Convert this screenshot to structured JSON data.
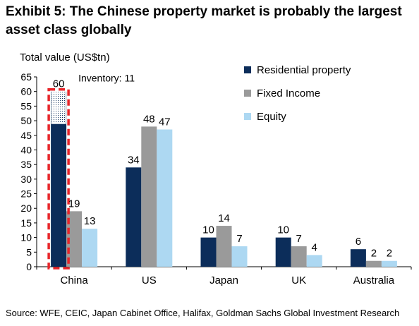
{
  "header": {
    "title": "Exhibit 5: The Chinese property market is probably the largest asset class globally"
  },
  "footer": {
    "source": "Source: WFE, CEIC, Japan Cabinet Office, Halifax, Goldman Sachs Global Investment Research"
  },
  "chart_data": {
    "type": "bar",
    "title": "Exhibit 5: The Chinese property market is probably the largest asset class globally",
    "xlabel": "",
    "ylabel": "Total value (US$tn)",
    "ylim": [
      0,
      65
    ],
    "yticks": [
      0,
      5,
      10,
      15,
      20,
      25,
      30,
      35,
      40,
      45,
      50,
      55,
      60,
      65
    ],
    "categories": [
      "China",
      "US",
      "Japan",
      "UK",
      "Australia"
    ],
    "series": [
      {
        "name": "Residential property",
        "values": [
          60,
          34,
          10,
          10,
          6
        ],
        "color": "#0c2d5a"
      },
      {
        "name": "Fixed Income",
        "values": [
          19,
          48,
          14,
          7,
          2
        ],
        "color": "#9a9a9a"
      },
      {
        "name": "Equity",
        "values": [
          13,
          47,
          7,
          4,
          2
        ],
        "color": "#add8f2"
      }
    ],
    "annotation": {
      "label": "Inventory: 11",
      "category": "China",
      "series": "Residential property",
      "range": [
        49,
        60
      ],
      "highlight_color": "#e8252a"
    },
    "grid": false,
    "legend_position": "top-right"
  }
}
